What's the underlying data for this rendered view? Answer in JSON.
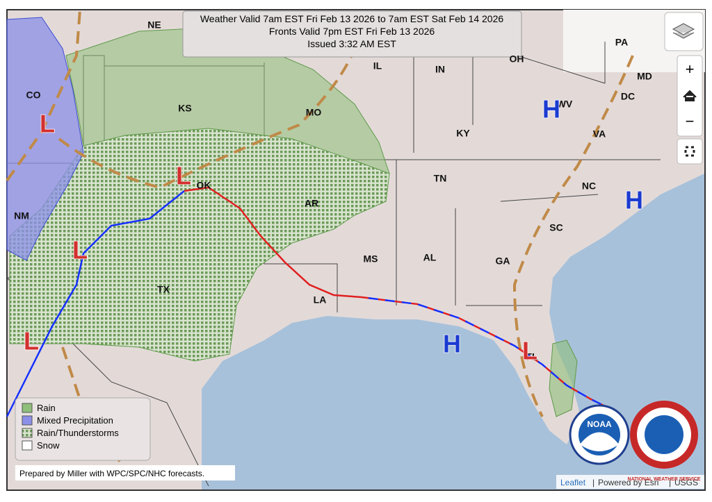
{
  "header": {
    "lines": [
      "Weather Valid 7am EST Fri Feb 13 2026 to 7am EST Sat Feb 14 2026",
      "Fronts Valid 7pm EST Fri Feb 13 2026",
      "Issued 3:32 AM EST"
    ]
  },
  "states": [
    "NE",
    "IL",
    "IN",
    "OH",
    "PA",
    "MD",
    "DC",
    "CO",
    "KS",
    "MO",
    "KY",
    "WV",
    "VA",
    "TN",
    "NC",
    "OK",
    "AR",
    "NM",
    "SC",
    "MS",
    "AL",
    "GA",
    "TX",
    "LA",
    "FL"
  ],
  "pressure_centers": [
    "H",
    "H",
    "H",
    "L",
    "L",
    "L",
    "L",
    "L"
  ],
  "legend": {
    "items": [
      "Rain",
      "Mixed Precipitation",
      "Rain/Thunderstorms",
      "Snow"
    ]
  },
  "credits": {
    "prepared_by": "Prepared by Miller with WPC/SPC/NHC forecasts.",
    "leaflet": "Leaflet",
    "separator": "|",
    "powered": "Powered by Esri",
    "usgs": "USGS"
  },
  "controls": {
    "zoom_in": "+",
    "zoom_out": "−"
  },
  "logos": {
    "noaa": "NOAA",
    "nws": "NATIONAL WEATHER SERVICE"
  }
}
